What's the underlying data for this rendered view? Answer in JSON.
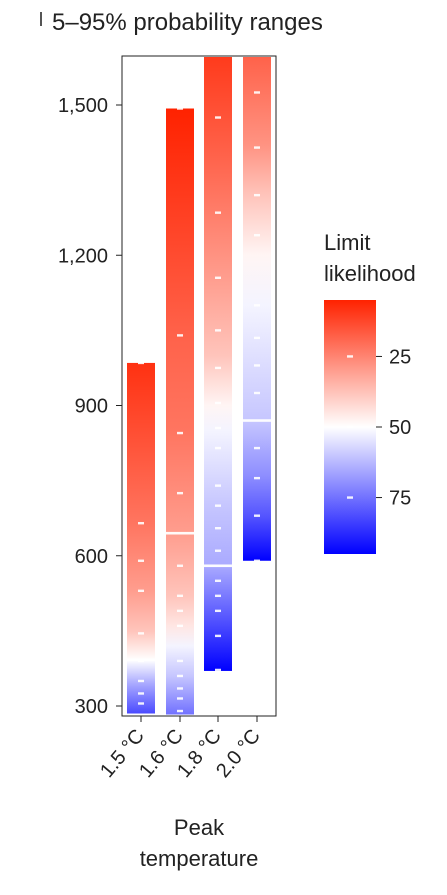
{
  "chart_data": {
    "type": "heatmap",
    "title": "5–95% probability ranges",
    "xlabel_lines": [
      "Peak",
      "temperature"
    ],
    "ylabel": "",
    "ylim": [
      285,
      1600
    ],
    "yticks": [
      {
        "value": 300,
        "label": "300"
      },
      {
        "value": 600,
        "label": "600"
      },
      {
        "value": 900,
        "label": "900"
      },
      {
        "value": 1200,
        "label": "1,200"
      },
      {
        "value": 1500,
        "label": "1,500"
      }
    ],
    "categories": [
      "1.5 °C",
      "1.6 °C",
      "1.8 °C",
      "2.0 °C"
    ],
    "grid": false,
    "legend": {
      "title_lines": [
        "Limit",
        "likelihood"
      ],
      "placement": "right",
      "ticks": [
        {
          "value": 25,
          "label": "25"
        },
        {
          "value": 50,
          "label": "50"
        },
        {
          "value": 75,
          "label": "75"
        }
      ],
      "range": [
        5,
        95
      ]
    },
    "colors": {
      "low": "#ff2200",
      "mid": "#ffffff",
      "high": "#0000ff"
    },
    "series": [
      {
        "category": "1.5 °C",
        "range": [
          285,
          985
        ],
        "stops": [
          [
            285,
            82
          ],
          [
            345,
            65
          ],
          [
            392,
            50
          ],
          [
            450,
            38
          ],
          [
            530,
            30
          ],
          [
            665,
            22
          ],
          [
            985,
            8
          ]
        ],
        "median": 392,
        "ticks": [
          305,
          325,
          350,
          390,
          445,
          530,
          590,
          665,
          985
        ]
      },
      {
        "category": "1.6 °C",
        "range": [
          283,
          1493
        ],
        "stops": [
          [
            283,
            75
          ],
          [
            360,
            60
          ],
          [
            420,
            52
          ],
          [
            460,
            45
          ],
          [
            520,
            38
          ],
          [
            645,
            30
          ],
          [
            850,
            22
          ],
          [
            1040,
            18
          ],
          [
            1493,
            5
          ]
        ],
        "median": 645,
        "ticks": [
          290,
          315,
          335,
          360,
          390,
          460,
          490,
          520,
          580,
          725,
          845,
          1040,
          1493
        ]
      },
      {
        "category": "1.8 °C",
        "range": [
          370,
          1600
        ],
        "stops": [
          [
            370,
            95
          ],
          [
            440,
            85
          ],
          [
            530,
            72
          ],
          [
            580,
            65
          ],
          [
            700,
            60
          ],
          [
            850,
            52
          ],
          [
            900,
            48
          ],
          [
            1000,
            38
          ],
          [
            1155,
            30
          ],
          [
            1400,
            18
          ],
          [
            1600,
            10
          ]
        ],
        "median": 580,
        "ticks": [
          372,
          440,
          490,
          520,
          550,
          610,
          655,
          700,
          740,
          815,
          855,
          905,
          975,
          1050,
          1155,
          1285,
          1475
        ]
      },
      {
        "category": "2.0 °C",
        "range": [
          590,
          1600
        ],
        "stops": [
          [
            590,
            95
          ],
          [
            680,
            80
          ],
          [
            760,
            70
          ],
          [
            870,
            60
          ],
          [
            1100,
            52
          ],
          [
            1200,
            48
          ],
          [
            1320,
            38
          ],
          [
            1420,
            28
          ],
          [
            1600,
            18
          ]
        ],
        "median": 870,
        "ticks": [
          590,
          680,
          755,
          815,
          925,
          980,
          1035,
          1100,
          1240,
          1320,
          1415,
          1525
        ]
      }
    ]
  }
}
